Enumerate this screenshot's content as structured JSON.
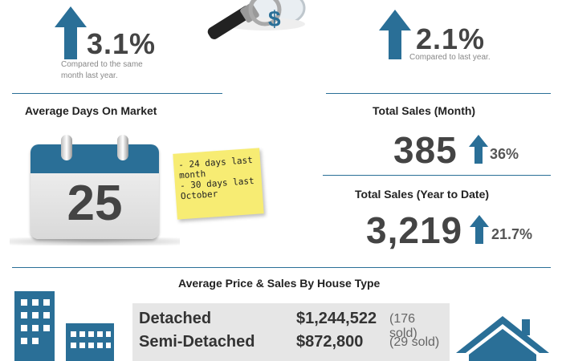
{
  "top_left": {
    "percent": "3.1%",
    "note_line1": "Compared to the same",
    "note_line2": "month last year."
  },
  "top_right": {
    "percent": "2.1%",
    "note": "Compared to last year."
  },
  "days_on_market": {
    "heading": "Average Days On Market",
    "calendar_number": "25",
    "sticky_lines": [
      "- 24 days last",
      "month",
      "- 30 days last",
      "October"
    ]
  },
  "total_sales_month": {
    "heading": "Total Sales (Month)",
    "value": "385",
    "change": "36%"
  },
  "total_sales_ytd": {
    "heading": "Total Sales (Year to Date)",
    "value": "3,219",
    "change": "21.7%"
  },
  "house_type": {
    "heading": "Average Price & Sales By House Type",
    "rows": [
      {
        "type": "Detached",
        "price": "$1,244,522",
        "sold": "(176 sold)"
      },
      {
        "type": "Semi-Detached",
        "price": "$872,800",
        "sold": "(29 sold)"
      }
    ]
  },
  "colors": {
    "accent": "#2a6f97",
    "arrow": "#2a6f97",
    "sticky": "#f7ec73"
  },
  "icons": [
    "up-arrow-icon",
    "magnifier-icon",
    "dollar-icon",
    "calendar-icon",
    "sticky-note-icon",
    "building-icon",
    "house-icon"
  ]
}
